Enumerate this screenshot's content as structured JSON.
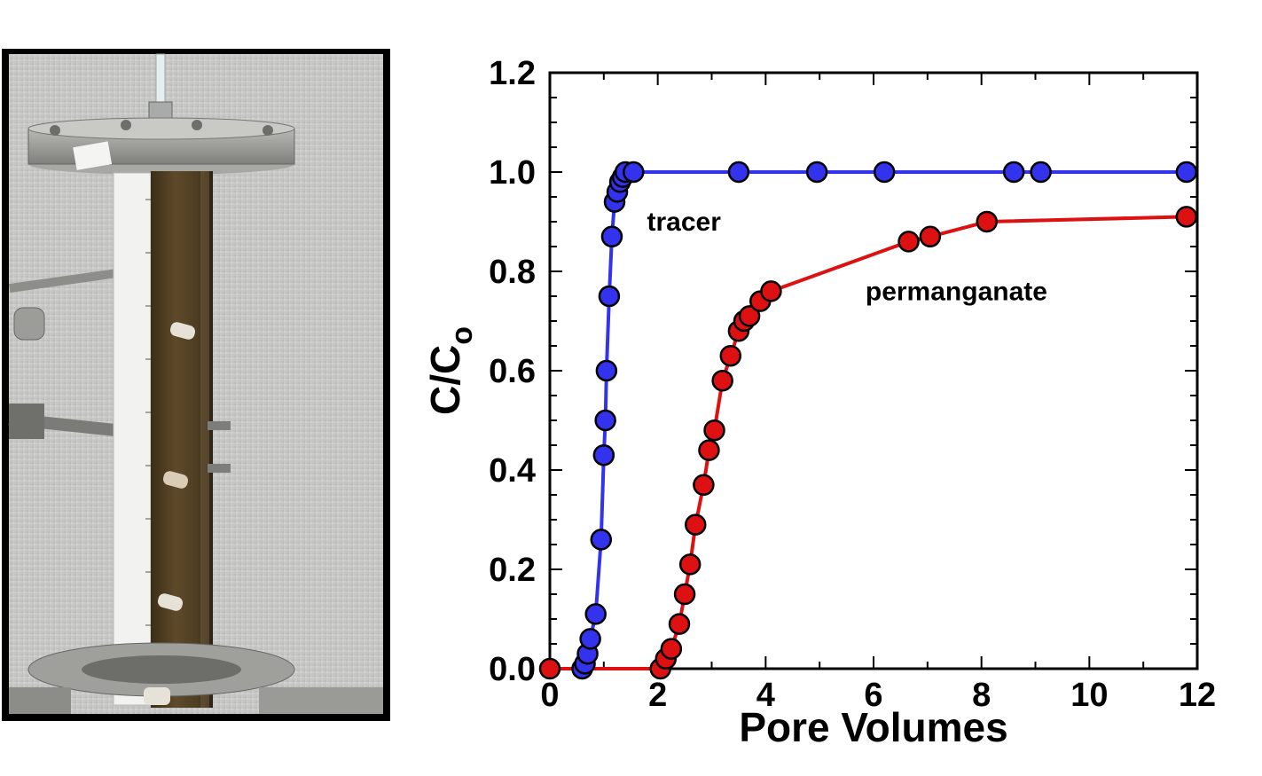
{
  "chart_data": {
    "type": "scatter",
    "xlabel": "Pore Volumes",
    "ylabel_main": "C/C",
    "ylabel_sub": "o",
    "xlim": [
      0,
      12
    ],
    "ylim": [
      0,
      1.2
    ],
    "x_ticks": [
      "0",
      "2",
      "4",
      "6",
      "8",
      "10",
      "12"
    ],
    "y_ticks": [
      "0.0",
      "0.2",
      "0.4",
      "0.6",
      "0.8",
      "1.0",
      "1.2"
    ],
    "grid": false,
    "series": [
      {
        "name": "tracer",
        "color": "#3333ee",
        "points": [
          [
            0.6,
            0.0
          ],
          [
            0.65,
            0.01
          ],
          [
            0.7,
            0.03
          ],
          [
            0.75,
            0.06
          ],
          [
            0.85,
            0.11
          ],
          [
            0.95,
            0.26
          ],
          [
            1.0,
            0.43
          ],
          [
            1.03,
            0.5
          ],
          [
            1.05,
            0.6
          ],
          [
            1.1,
            0.75
          ],
          [
            1.15,
            0.87
          ],
          [
            1.2,
            0.94
          ],
          [
            1.25,
            0.96
          ],
          [
            1.3,
            0.98
          ],
          [
            1.35,
            0.99
          ],
          [
            1.4,
            1.0
          ],
          [
            1.55,
            1.0
          ],
          [
            3.5,
            1.0
          ],
          [
            4.95,
            1.0
          ],
          [
            6.2,
            1.0
          ],
          [
            8.6,
            1.0
          ],
          [
            9.1,
            1.0
          ],
          [
            11.8,
            1.0
          ]
        ]
      },
      {
        "name": "permanganate",
        "color": "#dd1111",
        "points": [
          [
            0.0,
            0.0
          ],
          [
            2.05,
            0.0
          ],
          [
            2.15,
            0.02
          ],
          [
            2.25,
            0.04
          ],
          [
            2.4,
            0.09
          ],
          [
            2.5,
            0.15
          ],
          [
            2.6,
            0.21
          ],
          [
            2.7,
            0.29
          ],
          [
            2.85,
            0.37
          ],
          [
            2.95,
            0.44
          ],
          [
            3.05,
            0.48
          ],
          [
            3.2,
            0.58
          ],
          [
            3.35,
            0.63
          ],
          [
            3.5,
            0.68
          ],
          [
            3.6,
            0.7
          ],
          [
            3.7,
            0.71
          ],
          [
            3.9,
            0.74
          ],
          [
            4.1,
            0.76
          ],
          [
            6.65,
            0.86
          ],
          [
            7.05,
            0.87
          ],
          [
            8.1,
            0.9
          ],
          [
            11.8,
            0.91
          ]
        ]
      }
    ],
    "annotations": [
      {
        "text": "tracer",
        "x": 1.8,
        "y": 0.9
      },
      {
        "text": "permanganate",
        "x": 5.85,
        "y": 0.76
      }
    ]
  }
}
